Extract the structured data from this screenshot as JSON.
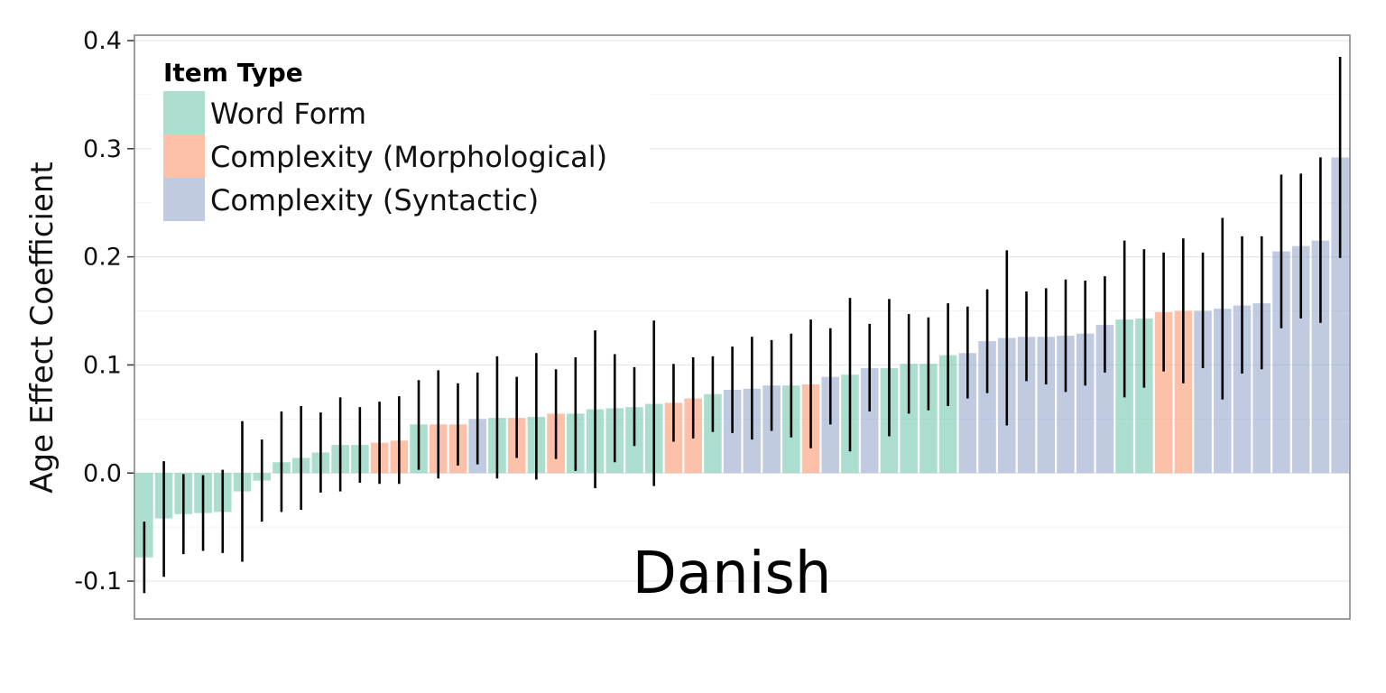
{
  "chart_data": {
    "type": "bar",
    "title": "",
    "panel_label": "Danish",
    "xlabel": "",
    "ylabel": "Age Effect Coefficient",
    "ylim": [
      -0.135,
      0.405
    ],
    "yticks": [
      -0.1,
      0.0,
      0.1,
      0.2,
      0.3,
      0.4
    ],
    "ytick_labels": [
      "-0.1",
      "0.0",
      "0.1",
      "0.2",
      "0.3",
      "0.4"
    ],
    "grid": true,
    "legend": {
      "title": "Item Type",
      "placement": "top-left",
      "entries": [
        {
          "name": "Word Form",
          "color": "#66c2a5"
        },
        {
          "name": "Complexity (Morphological)",
          "color": "#fc8d62"
        },
        {
          "name": "Complexity (Syntactic)",
          "color": "#8da0cb"
        }
      ]
    },
    "bar_opacity": 0.55,
    "series": [
      {
        "name": "Word Form",
        "color": "#66c2a5"
      },
      {
        "name": "Complexity (Morphological)",
        "color": "#fc8d62"
      },
      {
        "name": "Complexity (Syntactic)",
        "color": "#8da0cb"
      }
    ],
    "bars": [
      {
        "type": "Word Form",
        "value": -0.078,
        "lo": -0.111,
        "hi": -0.045
      },
      {
        "type": "Word Form",
        "value": -0.042,
        "lo": -0.096,
        "hi": 0.011
      },
      {
        "type": "Word Form",
        "value": -0.038,
        "lo": -0.075,
        "hi": -0.001
      },
      {
        "type": "Word Form",
        "value": -0.037,
        "lo": -0.072,
        "hi": -0.002
      },
      {
        "type": "Word Form",
        "value": -0.036,
        "lo": -0.074,
        "hi": 0.003
      },
      {
        "type": "Word Form",
        "value": -0.017,
        "lo": -0.082,
        "hi": 0.048
      },
      {
        "type": "Word Form",
        "value": -0.007,
        "lo": -0.045,
        "hi": 0.031
      },
      {
        "type": "Word Form",
        "value": 0.01,
        "lo": -0.036,
        "hi": 0.057
      },
      {
        "type": "Word Form",
        "value": 0.014,
        "lo": -0.034,
        "hi": 0.062
      },
      {
        "type": "Word Form",
        "value": 0.019,
        "lo": -0.018,
        "hi": 0.056
      },
      {
        "type": "Word Form",
        "value": 0.026,
        "lo": -0.017,
        "hi": 0.07
      },
      {
        "type": "Word Form",
        "value": 0.026,
        "lo": -0.009,
        "hi": 0.061
      },
      {
        "type": "Complexity (Morphological)",
        "value": 0.028,
        "lo": -0.01,
        "hi": 0.066
      },
      {
        "type": "Complexity (Morphological)",
        "value": 0.03,
        "lo": -0.01,
        "hi": 0.071
      },
      {
        "type": "Word Form",
        "value": 0.045,
        "lo": 0.003,
        "hi": 0.086
      },
      {
        "type": "Complexity (Morphological)",
        "value": 0.045,
        "lo": -0.005,
        "hi": 0.095
      },
      {
        "type": "Complexity (Morphological)",
        "value": 0.045,
        "lo": 0.007,
        "hi": 0.083
      },
      {
        "type": "Complexity (Syntactic)",
        "value": 0.05,
        "lo": 0.008,
        "hi": 0.093
      },
      {
        "type": "Word Form",
        "value": 0.051,
        "lo": -0.005,
        "hi": 0.108
      },
      {
        "type": "Complexity (Morphological)",
        "value": 0.051,
        "lo": 0.014,
        "hi": 0.089
      },
      {
        "type": "Word Form",
        "value": 0.052,
        "lo": -0.006,
        "hi": 0.111
      },
      {
        "type": "Complexity (Morphological)",
        "value": 0.055,
        "lo": 0.013,
        "hi": 0.096
      },
      {
        "type": "Word Form",
        "value": 0.055,
        "lo": 0.002,
        "hi": 0.107
      },
      {
        "type": "Word Form",
        "value": 0.059,
        "lo": -0.014,
        "hi": 0.132
      },
      {
        "type": "Word Form",
        "value": 0.06,
        "lo": 0.01,
        "hi": 0.11
      },
      {
        "type": "Word Form",
        "value": 0.061,
        "lo": 0.025,
        "hi": 0.098
      },
      {
        "type": "Word Form",
        "value": 0.064,
        "lo": -0.012,
        "hi": 0.141
      },
      {
        "type": "Complexity (Morphological)",
        "value": 0.065,
        "lo": 0.029,
        "hi": 0.101
      },
      {
        "type": "Complexity (Morphological)",
        "value": 0.069,
        "lo": 0.032,
        "hi": 0.107
      },
      {
        "type": "Word Form",
        "value": 0.073,
        "lo": 0.038,
        "hi": 0.108
      },
      {
        "type": "Complexity (Syntactic)",
        "value": 0.077,
        "lo": 0.037,
        "hi": 0.117
      },
      {
        "type": "Complexity (Syntactic)",
        "value": 0.078,
        "lo": 0.031,
        "hi": 0.126
      },
      {
        "type": "Complexity (Syntactic)",
        "value": 0.081,
        "lo": 0.039,
        "hi": 0.123
      },
      {
        "type": "Word Form",
        "value": 0.081,
        "lo": 0.033,
        "hi": 0.129
      },
      {
        "type": "Complexity (Morphological)",
        "value": 0.082,
        "lo": 0.023,
        "hi": 0.142
      },
      {
        "type": "Complexity (Syntactic)",
        "value": 0.089,
        "lo": 0.045,
        "hi": 0.134
      },
      {
        "type": "Word Form",
        "value": 0.091,
        "lo": 0.02,
        "hi": 0.162
      },
      {
        "type": "Complexity (Syntactic)",
        "value": 0.097,
        "lo": 0.057,
        "hi": 0.138
      },
      {
        "type": "Word Form",
        "value": 0.097,
        "lo": 0.034,
        "hi": 0.161
      },
      {
        "type": "Word Form",
        "value": 0.101,
        "lo": 0.055,
        "hi": 0.147
      },
      {
        "type": "Word Form",
        "value": 0.101,
        "lo": 0.058,
        "hi": 0.144
      },
      {
        "type": "Word Form",
        "value": 0.109,
        "lo": 0.062,
        "hi": 0.157
      },
      {
        "type": "Complexity (Syntactic)",
        "value": 0.111,
        "lo": 0.069,
        "hi": 0.154
      },
      {
        "type": "Complexity (Syntactic)",
        "value": 0.122,
        "lo": 0.074,
        "hi": 0.17
      },
      {
        "type": "Complexity (Syntactic)",
        "value": 0.125,
        "lo": 0.044,
        "hi": 0.206
      },
      {
        "type": "Complexity (Syntactic)",
        "value": 0.126,
        "lo": 0.085,
        "hi": 0.168
      },
      {
        "type": "Complexity (Syntactic)",
        "value": 0.126,
        "lo": 0.082,
        "hi": 0.171
      },
      {
        "type": "Complexity (Syntactic)",
        "value": 0.127,
        "lo": 0.075,
        "hi": 0.179
      },
      {
        "type": "Complexity (Syntactic)",
        "value": 0.129,
        "lo": 0.081,
        "hi": 0.178
      },
      {
        "type": "Complexity (Syntactic)",
        "value": 0.137,
        "lo": 0.093,
        "hi": 0.182
      },
      {
        "type": "Word Form",
        "value": 0.142,
        "lo": 0.07,
        "hi": 0.215
      },
      {
        "type": "Word Form",
        "value": 0.143,
        "lo": 0.079,
        "hi": 0.207
      },
      {
        "type": "Complexity (Morphological)",
        "value": 0.149,
        "lo": 0.094,
        "hi": 0.204
      },
      {
        "type": "Complexity (Morphological)",
        "value": 0.15,
        "lo": 0.083,
        "hi": 0.217
      },
      {
        "type": "Complexity (Syntactic)",
        "value": 0.15,
        "lo": 0.097,
        "hi": 0.204
      },
      {
        "type": "Complexity (Syntactic)",
        "value": 0.152,
        "lo": 0.068,
        "hi": 0.236
      },
      {
        "type": "Complexity (Syntactic)",
        "value": 0.155,
        "lo": 0.092,
        "hi": 0.219
      },
      {
        "type": "Complexity (Syntactic)",
        "value": 0.157,
        "lo": 0.096,
        "hi": 0.219
      },
      {
        "type": "Complexity (Syntactic)",
        "value": 0.205,
        "lo": 0.134,
        "hi": 0.276
      },
      {
        "type": "Complexity (Syntactic)",
        "value": 0.21,
        "lo": 0.143,
        "hi": 0.277
      },
      {
        "type": "Complexity (Syntactic)",
        "value": 0.215,
        "lo": 0.139,
        "hi": 0.292
      },
      {
        "type": "Complexity (Syntactic)",
        "value": 0.292,
        "lo": 0.199,
        "hi": 0.385
      }
    ]
  }
}
